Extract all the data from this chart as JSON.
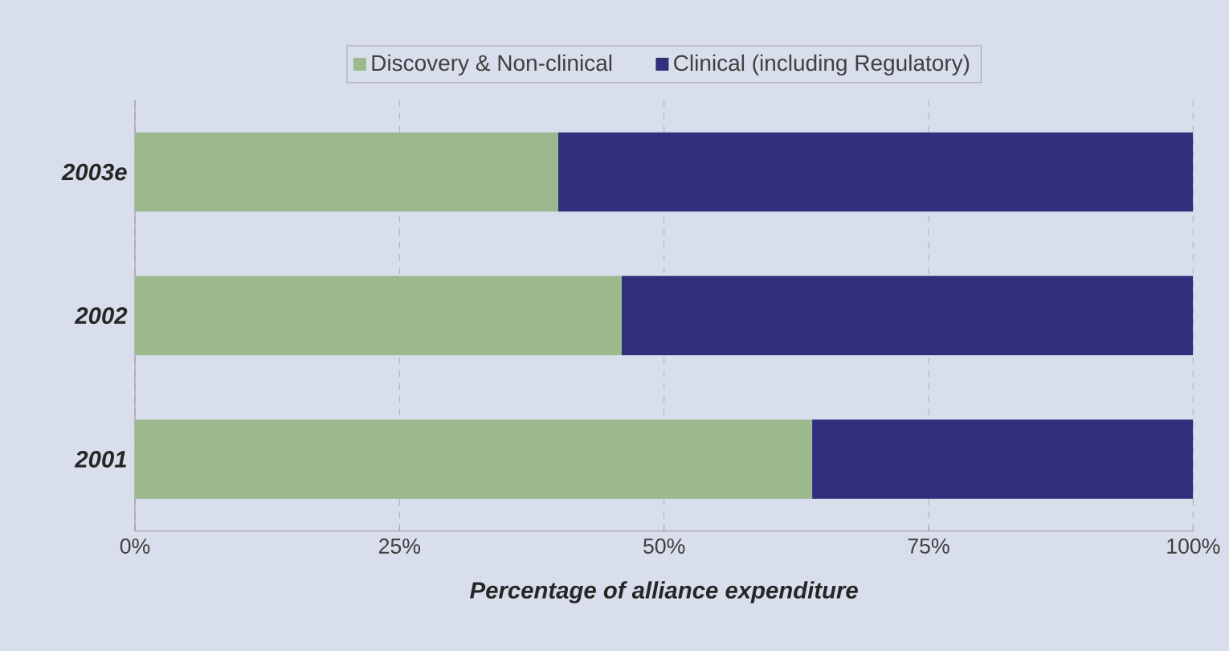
{
  "chart_data": {
    "type": "bar",
    "orientation": "horizontal",
    "stacked": true,
    "categories": [
      "2003e",
      "2002",
      "2001"
    ],
    "series": [
      {
        "name": "Discovery & Non-clinical",
        "color": "#9bb98c",
        "values": [
          40,
          46,
          64
        ]
      },
      {
        "name": "Clinical (including Regulatory)",
        "color": "#2f2f7c",
        "values": [
          60,
          54,
          36
        ]
      }
    ],
    "xlabel": "Percentage of alliance expenditure",
    "xlim": [
      0,
      100
    ],
    "xticks": [
      {
        "value": 0,
        "label": "0%"
      },
      {
        "value": 25,
        "label": "25%"
      },
      {
        "value": 50,
        "label": "50%"
      },
      {
        "value": 75,
        "label": "75%"
      },
      {
        "value": 100,
        "label": "100%"
      }
    ],
    "grid": "x",
    "legend": "top"
  }
}
